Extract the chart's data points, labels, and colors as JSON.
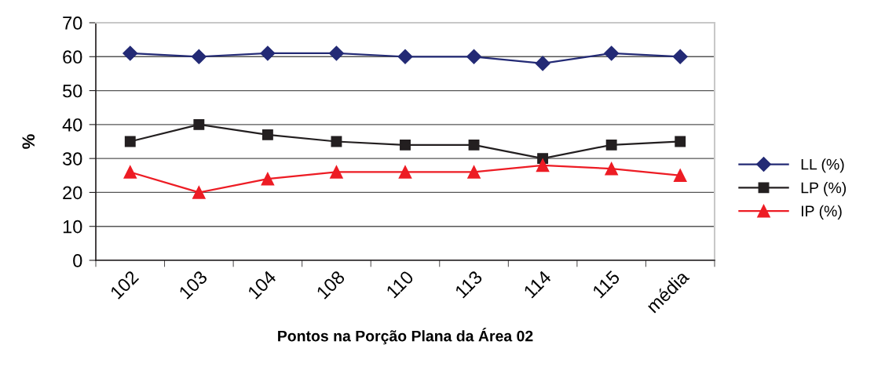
{
  "chart_data": {
    "type": "line",
    "xlabel": "Pontos na Porção Plana da Área 02",
    "ylabel": "%",
    "categories": [
      "102",
      "103",
      "104",
      "108",
      "110",
      "113",
      "114",
      "115",
      "média"
    ],
    "series": [
      {
        "name": "LL (%)",
        "color": "#232a75",
        "marker": "diamond",
        "values": [
          61,
          60,
          61,
          61,
          60,
          60,
          58,
          61,
          60
        ]
      },
      {
        "name": "LP (%)",
        "color": "#231f20",
        "marker": "square",
        "values": [
          35,
          40,
          37,
          35,
          34,
          34,
          30,
          34,
          35
        ]
      },
      {
        "name": "IP (%)",
        "color": "#ed1c24",
        "marker": "triangle",
        "values": [
          26,
          20,
          24,
          26,
          26,
          26,
          28,
          27,
          25
        ]
      }
    ],
    "ylim": [
      0,
      70
    ],
    "yticks": [
      0,
      10,
      20,
      30,
      40,
      50,
      60,
      70
    ],
    "grid": "y",
    "legend": "right",
    "line_style": "solid"
  }
}
